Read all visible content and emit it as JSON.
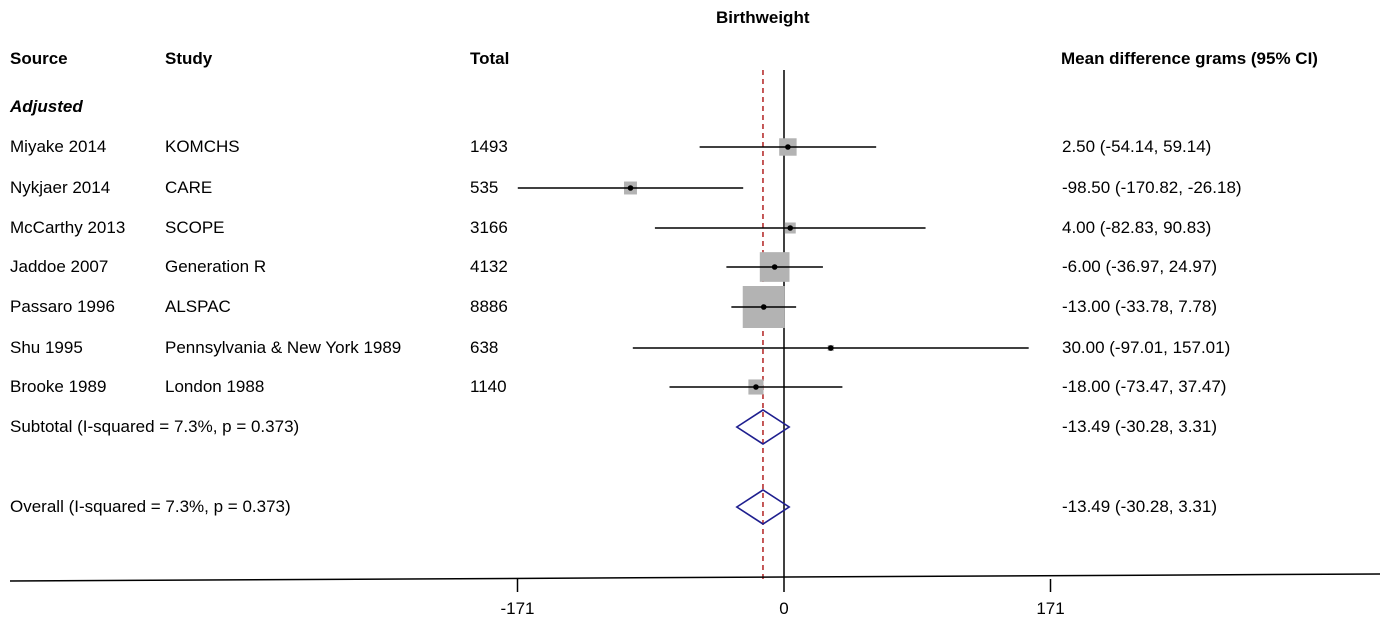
{
  "chart_data": {
    "type": "forest",
    "title": "Birthweight",
    "headers": {
      "source": "Source",
      "study": "Study",
      "total": "Total",
      "effect": "Mean difference grams (95% CI)"
    },
    "group_label": "Adjusted",
    "studies": [
      {
        "source": "Miyake 2014",
        "study": "KOMCHS",
        "total": "1493",
        "mean": 2.5,
        "lo": -54.14,
        "hi": 59.14,
        "weight": 1.0,
        "ci_text": "2.50 (-54.14, 59.14)"
      },
      {
        "source": "Nykjaer 2014",
        "study": "CARE",
        "total": "535",
        "mean": -98.5,
        "lo": -170.82,
        "hi": -26.18,
        "weight": 0.55,
        "ci_text": "-98.50 (-170.82, -26.18)"
      },
      {
        "source": "McCarthy 2013",
        "study": "SCOPE",
        "total": "3166",
        "mean": 4.0,
        "lo": -82.83,
        "hi": 90.83,
        "weight": 0.4,
        "ci_text": "4.00 (-82.83, 90.83)"
      },
      {
        "source": "Jaddoe 2007",
        "study": "Generation R",
        "total": "4132",
        "mean": -6.0,
        "lo": -36.97,
        "hi": 24.97,
        "weight": 2.9,
        "ci_text": "-6.00 (-36.97, 24.97)"
      },
      {
        "source": "Passaro 1996",
        "study": "ALSPAC",
        "total": "8886",
        "mean": -13.0,
        "lo": -33.78,
        "hi": 7.78,
        "weight": 5.8,
        "ci_text": "-13.00 (-33.78, 7.78)"
      },
      {
        "source": "Shu 1995",
        "study": "Pennsylvania & New York 1989",
        "total": "638",
        "mean": 30.0,
        "lo": -97.01,
        "hi": 157.01,
        "weight": 0.12,
        "ci_text": "30.00 (-97.01, 157.01)"
      },
      {
        "source": "Brooke 1989",
        "study": "London 1988",
        "total": "1140",
        "mean": -18.0,
        "lo": -73.47,
        "hi": 37.47,
        "weight": 0.75,
        "ci_text": "-18.00 (-73.47, 37.47)"
      }
    ],
    "subtotal": {
      "label": "Subtotal  (I-squared = 7.3%, p = 0.373)",
      "mean": -13.49,
      "lo": -30.28,
      "hi": 3.31,
      "ci_text": "-13.49 (-30.28, 3.31)"
    },
    "overall": {
      "label": "Overall  (I-squared = 7.3%, p = 0.373)",
      "mean": -13.49,
      "lo": -30.28,
      "hi": 3.31,
      "ci_text": "-13.49 (-30.28, 3.31)"
    },
    "x_ticks": [
      -171,
      0,
      171
    ],
    "x_tick_labels": [
      "-171",
      "0",
      "171"
    ],
    "xlim": [
      -171,
      171
    ],
    "null_line": 0,
    "reference_line": -13.49,
    "colors": {
      "box": "#b3b3b3",
      "diamond": "#1f1f8f",
      "reference_line": "#b22222",
      "line": "#000000"
    }
  }
}
